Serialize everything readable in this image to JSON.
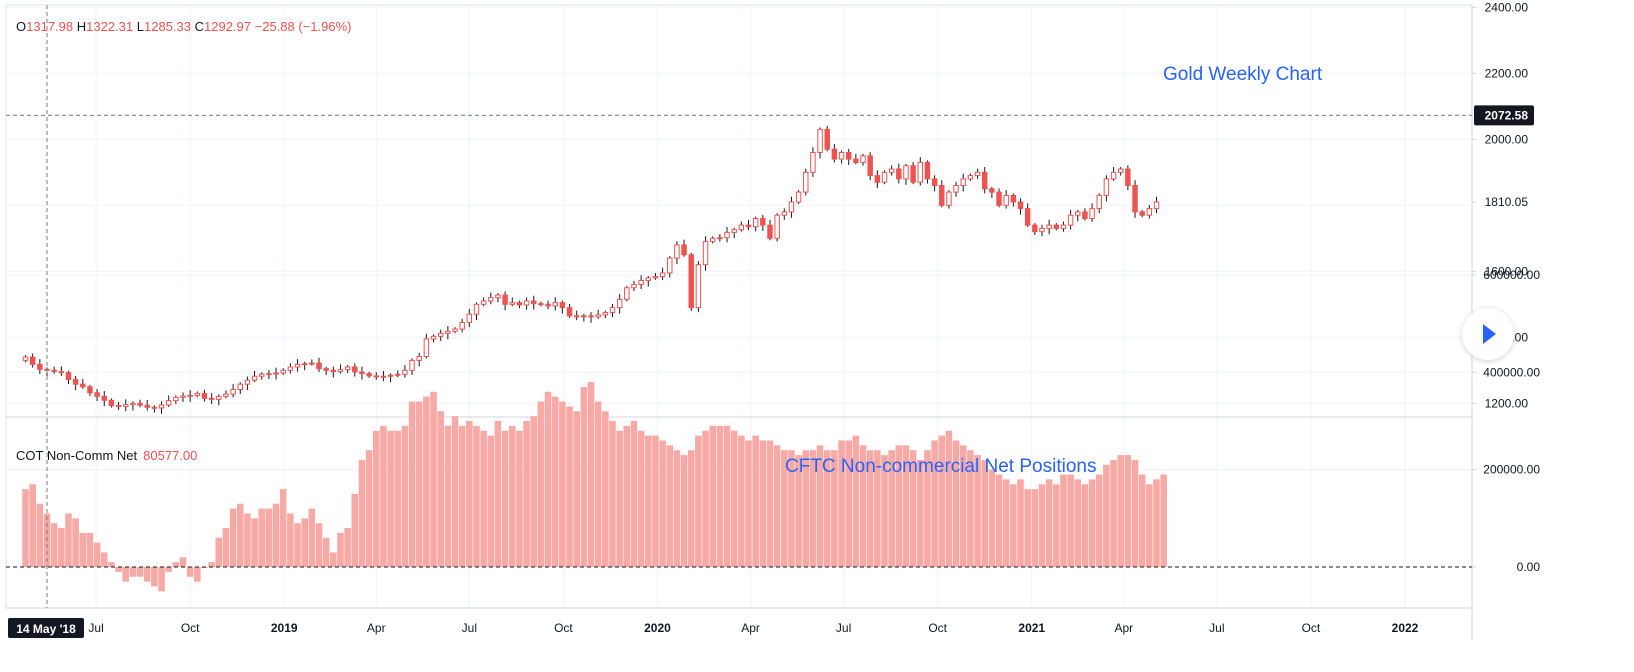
{
  "ohlc": {
    "o_label": "O",
    "o": "1317.98",
    "h_label": "H",
    "h": "1322.31",
    "l_label": "L",
    "l": "1285.33",
    "c_label": "C",
    "c": "1292.97",
    "change": "−25.88 (−1.96%)"
  },
  "price_label": "2072.58",
  "last_price_label": "1810.05",
  "cot": {
    "name": "COT Non-Comm Net",
    "value": "80577.00"
  },
  "annotations": {
    "price": "Gold Weekly Chart",
    "cot": "CFTC Non-commercial Net Positions"
  },
  "cursor_date": "14 May '18",
  "colors": {
    "up": "#ef5350",
    "down": "#ef5350",
    "cot_bar": "#f7a9a5",
    "annotation": "#2962ff",
    "label_bg": "#131722"
  },
  "icons": {
    "play": "play-icon"
  },
  "chart_data": [
    {
      "type": "candlestick",
      "title": "Gold Weekly Chart",
      "y_ticks": [
        "2400.00",
        "2200.00",
        "2000.00",
        "1810.05",
        "1600.00",
        "1400.00",
        "1200.00"
      ],
      "ylim": [
        1100,
        2400
      ],
      "x_ticks": [
        {
          "label": "Jul",
          "date": "2018-07-01",
          "bold": false
        },
        {
          "label": "Oct",
          "date": "2018-10-01",
          "bold": false
        },
        {
          "label": "2019",
          "date": "2019-01-01",
          "bold": true
        },
        {
          "label": "Apr",
          "date": "2019-04-01",
          "bold": false
        },
        {
          "label": "Jul",
          "date": "2019-07-01",
          "bold": false
        },
        {
          "label": "Oct",
          "date": "2019-10-01",
          "bold": false
        },
        {
          "label": "2020",
          "date": "2020-01-01",
          "bold": true
        },
        {
          "label": "Apr",
          "date": "2020-04-01",
          "bold": false
        },
        {
          "label": "Jul",
          "date": "2020-07-01",
          "bold": false
        },
        {
          "label": "Oct",
          "date": "2020-10-01",
          "bold": false
        },
        {
          "label": "2021",
          "date": "2021-01-01",
          "bold": true
        },
        {
          "label": "Apr",
          "date": "2021-04-01",
          "bold": false
        },
        {
          "label": "Jul",
          "date": "2021-07-01",
          "bold": false
        },
        {
          "label": "Oct",
          "date": "2021-10-01",
          "bold": false
        },
        {
          "label": "2022",
          "date": "2022-01-01",
          "bold": true
        }
      ],
      "start_date": "2018-04-23",
      "interval": "weekly",
      "close": [
        1340,
        1318,
        1303,
        1300,
        1296,
        1293,
        1272,
        1258,
        1250,
        1232,
        1221,
        1209,
        1193,
        1190,
        1196,
        1200,
        1194,
        1188,
        1186,
        1195,
        1208,
        1218,
        1222,
        1224,
        1230,
        1215,
        1212,
        1221,
        1228,
        1242,
        1258,
        1270,
        1282,
        1288,
        1290,
        1292,
        1300,
        1310,
        1318,
        1320,
        1322,
        1305,
        1300,
        1296,
        1302,
        1310,
        1295,
        1290,
        1283,
        1281,
        1282,
        1285,
        1288,
        1300,
        1330,
        1342,
        1395,
        1403,
        1412,
        1418,
        1425,
        1445,
        1470,
        1500,
        1510,
        1520,
        1528,
        1500,
        1505,
        1498,
        1510,
        1502,
        1500,
        1495,
        1505,
        1490,
        1465,
        1462,
        1465,
        1462,
        1468,
        1475,
        1490,
        1515,
        1550,
        1560,
        1572,
        1580,
        1584,
        1595,
        1640,
        1680,
        1650,
        1490,
        1620,
        1690,
        1700,
        1702,
        1718,
        1726,
        1740,
        1735,
        1760,
        1740,
        1700,
        1770,
        1780,
        1810,
        1840,
        1900,
        1960,
        2030,
        1970,
        1940,
        1960,
        1940,
        1930,
        1950,
        1890,
        1870,
        1900,
        1910,
        1880,
        1920,
        1870,
        1930,
        1880,
        1860,
        1800,
        1840,
        1860,
        1880,
        1890,
        1900,
        1850,
        1840,
        1800,
        1830,
        1810,
        1790,
        1740,
        1720,
        1730,
        1740,
        1730,
        1740,
        1770,
        1780,
        1760,
        1790,
        1830,
        1880,
        1900,
        1910,
        1860,
        1780,
        1770,
        1790,
        1810
      ],
      "last_price": 1810.05,
      "highlight_level": 2072.58
    },
    {
      "type": "bar",
      "title": "COT Non-Comm Net",
      "y_ticks": [
        "600000.00",
        "400000.00",
        "200000.00",
        "0.00"
      ],
      "ylim": [
        -200000,
        600000
      ],
      "start_date": "2018-04-23",
      "interval": "weekly",
      "values": [
        160000,
        170000,
        130000,
        110000,
        90000,
        80000,
        110000,
        100000,
        70000,
        70000,
        50000,
        30000,
        10000,
        -10000,
        -30000,
        -20000,
        -20000,
        -30000,
        -40000,
        -50000,
        -10000,
        10000,
        20000,
        -20000,
        -30000,
        0,
        10000,
        60000,
        80000,
        120000,
        130000,
        110000,
        100000,
        120000,
        120000,
        130000,
        160000,
        110000,
        90000,
        100000,
        120000,
        90000,
        60000,
        30000,
        70000,
        80000,
        150000,
        220000,
        240000,
        280000,
        290000,
        280000,
        280000,
        290000,
        340000,
        340000,
        350000,
        360000,
        320000,
        290000,
        310000,
        290000,
        300000,
        290000,
        280000,
        270000,
        300000,
        280000,
        290000,
        280000,
        300000,
        310000,
        340000,
        360000,
        350000,
        340000,
        330000,
        320000,
        370000,
        380000,
        340000,
        320000,
        300000,
        280000,
        290000,
        300000,
        280000,
        270000,
        270000,
        260000,
        250000,
        240000,
        230000,
        240000,
        270000,
        280000,
        290000,
        290000,
        290000,
        280000,
        270000,
        260000,
        270000,
        260000,
        260000,
        250000,
        240000,
        240000,
        230000,
        240000,
        240000,
        250000,
        240000,
        240000,
        260000,
        260000,
        270000,
        250000,
        240000,
        240000,
        230000,
        240000,
        250000,
        250000,
        240000,
        220000,
        240000,
        260000,
        270000,
        280000,
        260000,
        250000,
        240000,
        230000,
        220000,
        200000,
        190000,
        180000,
        170000,
        180000,
        160000,
        160000,
        170000,
        180000,
        170000,
        190000,
        190000,
        180000,
        170000,
        180000,
        190000,
        210000,
        220000,
        230000,
        230000,
        220000,
        190000,
        170000,
        180000,
        190000
      ]
    }
  ]
}
